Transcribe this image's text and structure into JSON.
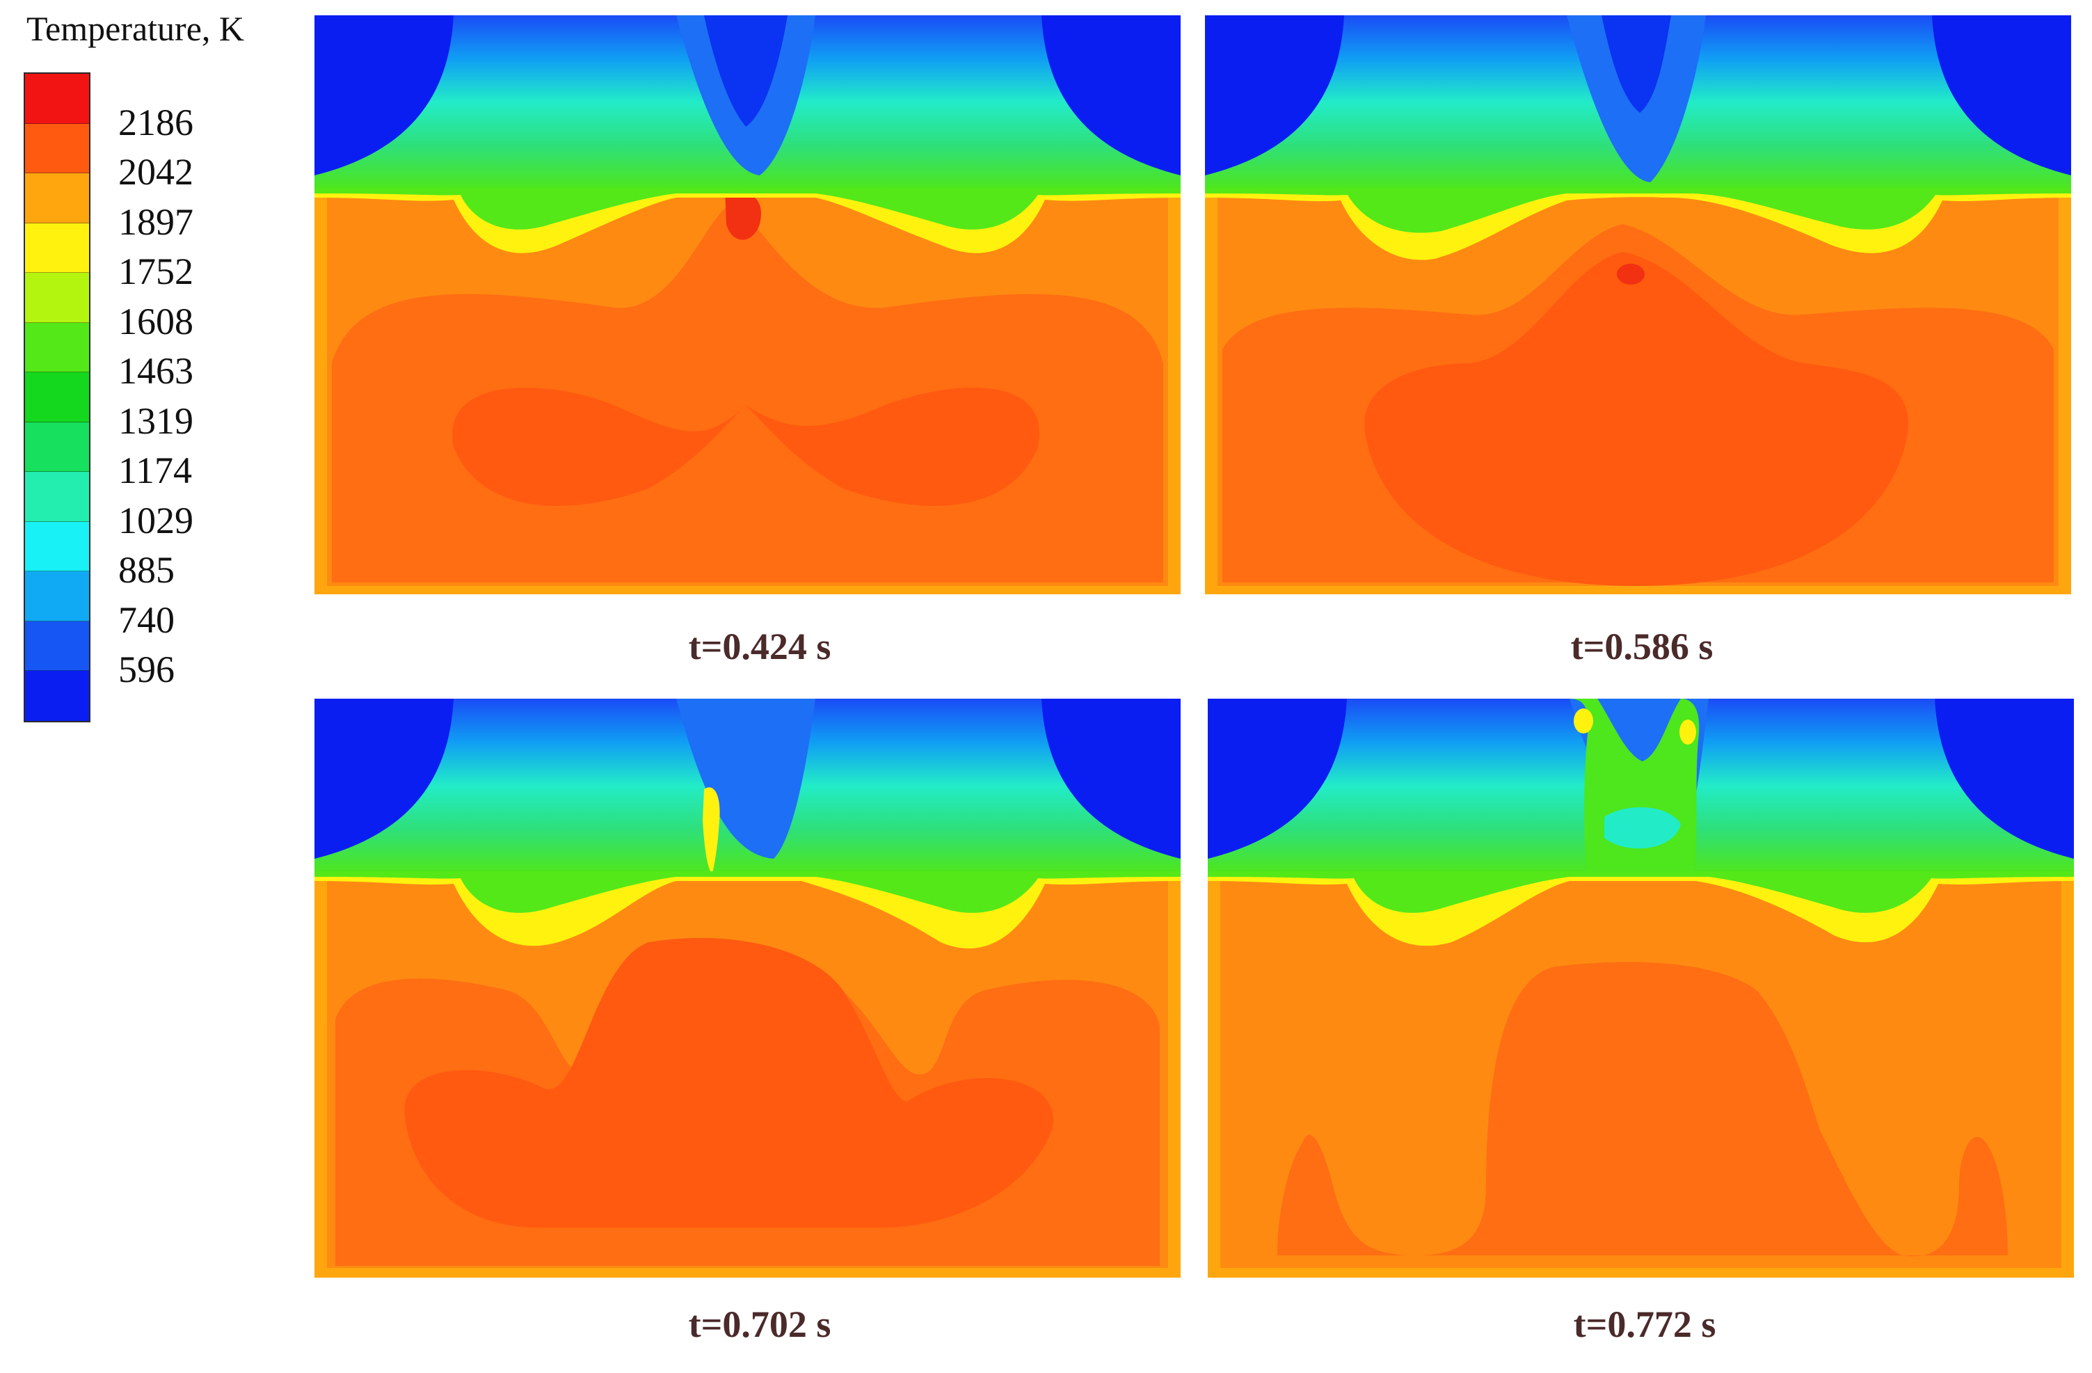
{
  "legend": {
    "title": "Temperature, K",
    "colors": [
      "#f21313",
      "#ff5a10",
      "#ffa60f",
      "#fff20f",
      "#b4f510",
      "#54e818",
      "#13d81d",
      "#16e05d",
      "#24edb0",
      "#18f1f6",
      "#10aaf4",
      "#1656f5",
      "#0b1ef2"
    ],
    "labels": [
      "2186",
      "2042",
      "1897",
      "1752",
      "1608",
      "1463",
      "1319",
      "1174",
      "1029",
      "885",
      "740",
      "596"
    ]
  },
  "panels": [
    {
      "caption": "t=0.424 s"
    },
    {
      "caption": "t=0.586 s"
    },
    {
      "caption": "t=0.702 s"
    },
    {
      "caption": "t=0.772 s"
    }
  ]
}
